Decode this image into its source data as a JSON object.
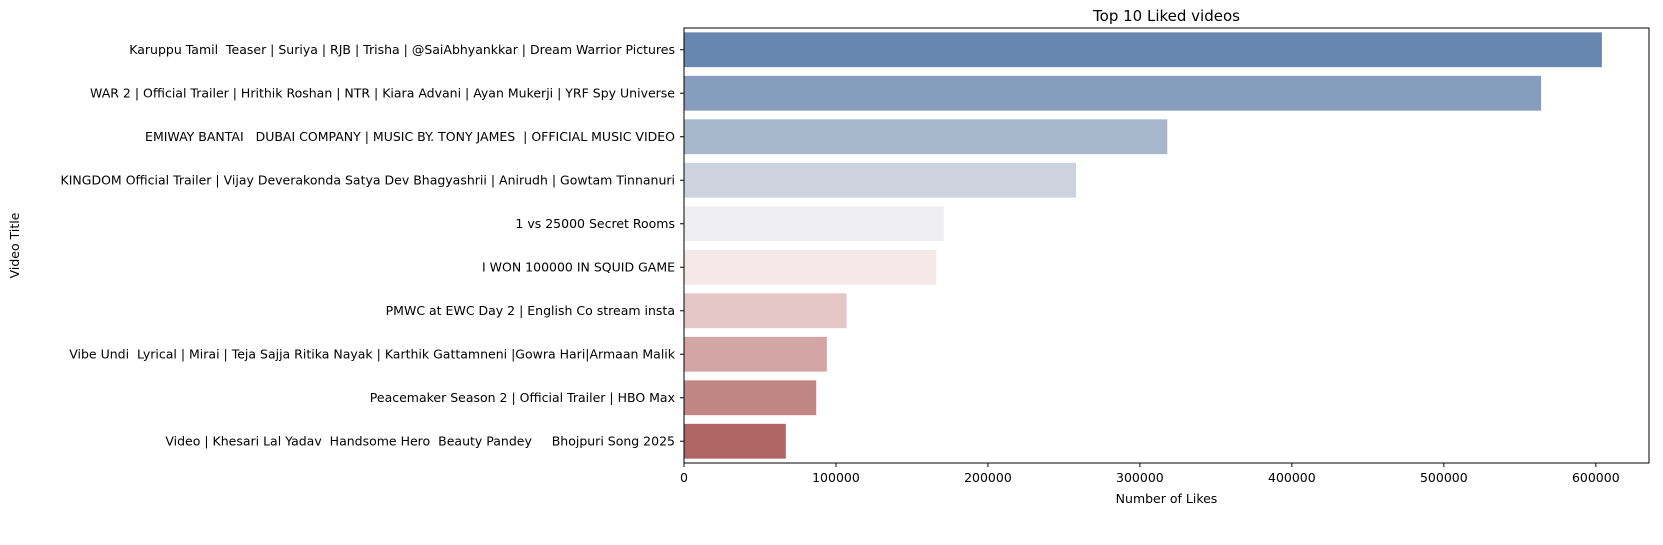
{
  "chart_data": {
    "type": "bar",
    "orientation": "horizontal",
    "title": "Top 10 Liked videos",
    "xlabel": "Number of Likes",
    "ylabel": "Video Title",
    "xlim": [
      0,
      635000
    ],
    "xticks": [
      0,
      100000,
      200000,
      300000,
      400000,
      500000,
      600000
    ],
    "grid": false,
    "categories": [
      "Karuppu Tamil  Teaser | Suriya | RJB | Trisha | @SaiAbhyankkar | Dream Warrior Pictures",
      "WAR 2 | Official Trailer | Hrithik Roshan | NTR | Kiara Advani | Ayan Mukerji | YRF Spy Universe",
      "EMIWAY BANTAI   DUBAI COMPANY | MUSIC BY. TONY JAMES  | OFFICIAL MUSIC VIDEO",
      "KINGDOM Official Trailer | Vijay Deverakonda Satya Dev Bhagyashrii | Anirudh | Gowtam Tinnanuri",
      "1 vs 25000 Secret Rooms",
      "I WON 100000 IN SQUID GAME",
      "PMWC at EWC Day 2 | English Co stream insta",
      "Vibe Undi  Lyrical | Mirai | Teja Sajja Ritika Nayak | Karthik Gattamneni |Gowra Hari|Armaan Malik",
      "Peacemaker Season 2 | Official Trailer | HBO Max",
      "Video | Khesari Lal Yadav  Handsome Hero  Beauty Pandey     Bhojpuri Song 2025"
    ],
    "values": [
      604000,
      564000,
      318000,
      258000,
      171000,
      166000,
      107000,
      94000,
      87000,
      67000
    ],
    "colors": [
      "#6787b1",
      "#879dbe",
      "#a8b6cb",
      "#ccd2de",
      "#efeff1",
      "#f5e8e9",
      "#e4c6c7",
      "#d3a5a4",
      "#c18583",
      "#af6563"
    ]
  }
}
